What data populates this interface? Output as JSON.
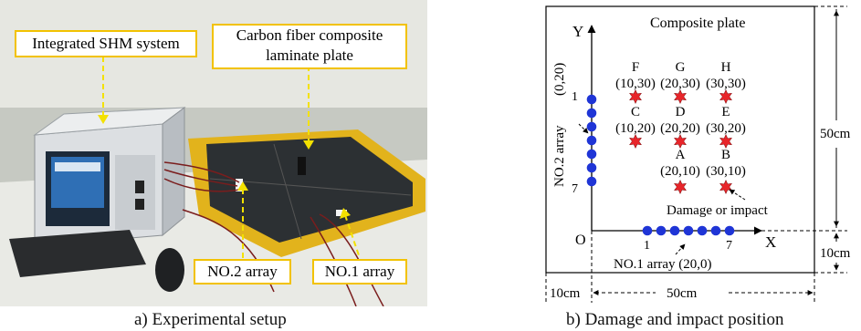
{
  "photo": {
    "label_system": "Integrated SHM system",
    "label_plate_line1": "Carbon fiber composite",
    "label_plate_line2": "laminate plate",
    "label_array2": "NO.2 array",
    "label_array1": "NO.1 array",
    "caption": "a) Experimental setup",
    "colors": {
      "label_border": "#f2c200",
      "arrow": "#f3e100",
      "plate_frame": "#e2b31c"
    }
  },
  "diagram": {
    "title": "Composite plate",
    "axis_y": "Y",
    "axis_x": "X",
    "origin": "O",
    "array2_label": "NO.2 array",
    "array2_coord": "(0,20)",
    "array2_first": "1",
    "array2_last": "7",
    "array1_label": "NO.1 array (20,0)",
    "array1_first": "1",
    "array1_last": "7",
    "damage_label": "Damage or impact",
    "dim_50_right": "50cm",
    "dim_10_right": "10cm",
    "dim_10_bottom": "10cm",
    "dim_50_bottom": "50cm",
    "points": [
      {
        "id": "F",
        "coord": "(10,30)"
      },
      {
        "id": "G",
        "coord": "(20,30)"
      },
      {
        "id": "H",
        "coord": "(30,30)"
      },
      {
        "id": "C",
        "coord": "(10,20)"
      },
      {
        "id": "D",
        "coord": "(20,20)"
      },
      {
        "id": "E",
        "coord": "(30,20)"
      },
      {
        "id": "A",
        "coord": "(20,10)"
      },
      {
        "id": "B",
        "coord": "(30,10)"
      }
    ],
    "caption": "b) Damage and impact position",
    "colors": {
      "sensor": "#1f35d6",
      "star": "#e8252a"
    }
  }
}
